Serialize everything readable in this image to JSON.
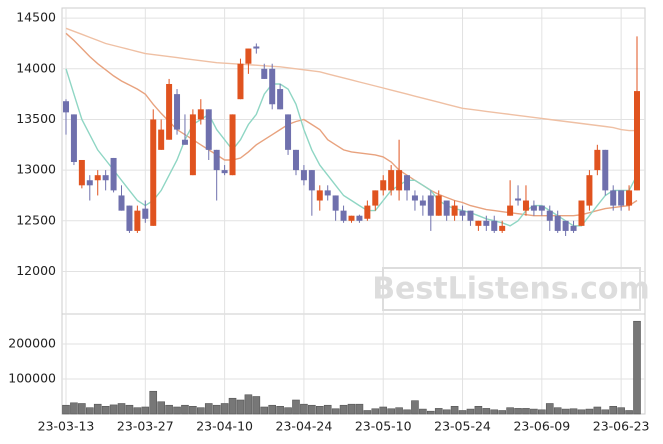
{
  "chart_data": {
    "type": "candlestick",
    "categories": [
      "23-03-13",
      null,
      null,
      null,
      null,
      null,
      null,
      null,
      null,
      null,
      "23-03-27",
      null,
      null,
      null,
      null,
      null,
      null,
      null,
      null,
      null,
      "23-04-10",
      null,
      null,
      null,
      null,
      null,
      null,
      null,
      null,
      null,
      "23-04-24",
      null,
      null,
      null,
      null,
      null,
      null,
      null,
      null,
      null,
      "23-05-10",
      null,
      null,
      null,
      null,
      null,
      null,
      null,
      null,
      null,
      "23-05-24",
      null,
      null,
      null,
      null,
      null,
      null,
      null,
      null,
      null,
      "23-06-09",
      null,
      null,
      null,
      null,
      null,
      null,
      null,
      null,
      null,
      "23-06-23",
      null,
      null
    ],
    "open": [
      13680,
      13550,
      12850,
      12900,
      12900,
      12950,
      13120,
      12750,
      12650,
      12400,
      12620,
      12450,
      13200,
      13300,
      13750,
      13300,
      12950,
      13500,
      13600,
      13200,
      13000,
      12950,
      13700,
      14050,
      14220,
      14000,
      14000,
      13800,
      13550,
      13200,
      13000,
      13000,
      12700,
      12800,
      12750,
      12600,
      12500,
      12550,
      12520,
      12650,
      12800,
      12800,
      12800,
      12950,
      12750,
      12700,
      12750,
      12550,
      12700,
      12550,
      12600,
      12600,
      12450,
      12500,
      12500,
      12400,
      12550,
      12720,
      12600,
      12650,
      12650,
      12600,
      12550,
      12500,
      12450,
      12450,
      12650,
      13000,
      13200,
      12800,
      12800,
      12650,
      12800
    ],
    "high": [
      13700,
      13550,
      13100,
      12950,
      13000,
      13000,
      13120,
      12850,
      12650,
      12650,
      12700,
      13600,
      13500,
      13900,
      13800,
      13550,
      13600,
      13700,
      13600,
      13200,
      13050,
      13550,
      14100,
      14200,
      14250,
      14050,
      14050,
      13850,
      13550,
      13200,
      13050,
      13000,
      12850,
      12850,
      12750,
      12650,
      12550,
      12560,
      12700,
      12800,
      12950,
      13050,
      13300,
      12950,
      12800,
      12750,
      12800,
      12800,
      12700,
      12700,
      12650,
      12600,
      12500,
      12550,
      12550,
      12500,
      12900,
      12850,
      12850,
      12700,
      12650,
      12650,
      12600,
      12500,
      12500,
      12700,
      13000,
      13250,
      13200,
      12850,
      12800,
      12850,
      14320
    ],
    "low": [
      13350,
      13050,
      12820,
      12700,
      12750,
      12800,
      12780,
      12600,
      12380,
      12380,
      12480,
      12450,
      13200,
      13300,
      13350,
      13250,
      12950,
      13450,
      13100,
      12700,
      12950,
      12950,
      13700,
      13950,
      14150,
      13900,
      13600,
      13600,
      13150,
      12950,
      12850,
      12550,
      12600,
      12700,
      12500,
      12480,
      12480,
      12480,
      12500,
      12600,
      12750,
      12750,
      12700,
      12700,
      12600,
      12550,
      12400,
      12550,
      12500,
      12500,
      12500,
      12450,
      12400,
      12400,
      12380,
      12380,
      12550,
      12650,
      12550,
      12550,
      12550,
      12400,
      12380,
      12350,
      12380,
      12450,
      12600,
      12950,
      12750,
      12600,
      12600,
      12600,
      12800
    ],
    "close": [
      13570,
      13080,
      13100,
      12850,
      12950,
      12900,
      12800,
      12600,
      12400,
      12600,
      12520,
      13500,
      13400,
      13850,
      13400,
      13250,
      13550,
      13600,
      13200,
      13000,
      12970,
      13550,
      14050,
      14200,
      14200,
      13900,
      13650,
      13600,
      13200,
      13000,
      12900,
      12800,
      12800,
      12750,
      12600,
      12500,
      12550,
      12500,
      12650,
      12800,
      12900,
      13000,
      13000,
      12800,
      12700,
      12650,
      12550,
      12750,
      12550,
      12650,
      12550,
      12500,
      12500,
      12450,
      12400,
      12450,
      12650,
      12700,
      12700,
      12600,
      12600,
      12500,
      12400,
      12400,
      12400,
      12700,
      12950,
      13200,
      12800,
      12650,
      12650,
      12800,
      13780
    ],
    "up_color": "#e0531f",
    "down_color": "#6f70ad",
    "ylim": [
      11580,
      14600
    ],
    "yticks": [
      12000,
      12500,
      13000,
      13500,
      14000,
      14500
    ],
    "moving_averages": [
      {
        "color": "#efc0a4",
        "values": [
          14400,
          14370,
          14340,
          14310,
          14280,
          14250,
          14230,
          14210,
          14190,
          14170,
          14150,
          14140,
          14130,
          14120,
          14110,
          14100,
          14090,
          14080,
          14070,
          14060,
          14055,
          14050,
          14045,
          14040,
          14035,
          14030,
          14025,
          14020,
          14010,
          14000,
          13990,
          13980,
          13970,
          13950,
          13930,
          13910,
          13890,
          13870,
          13850,
          13830,
          13810,
          13790,
          13770,
          13750,
          13730,
          13710,
          13690,
          13670,
          13650,
          13630,
          13610,
          13600,
          13590,
          13580,
          13570,
          13560,
          13550,
          13540,
          13530,
          13520,
          13510,
          13500,
          13490,
          13480,
          13470,
          13460,
          13450,
          13440,
          13430,
          13420,
          13400,
          13390,
          13390
        ]
      },
      {
        "color": "#e8a27e",
        "values": [
          14350,
          14280,
          14200,
          14120,
          14050,
          13990,
          13930,
          13880,
          13840,
          13800,
          13750,
          13650,
          13560,
          13480,
          13400,
          13350,
          13300,
          13250,
          13200,
          13150,
          13100,
          13100,
          13120,
          13180,
          13250,
          13300,
          13350,
          13400,
          13450,
          13480,
          13500,
          13450,
          13400,
          13300,
          13250,
          13200,
          13180,
          13170,
          13160,
          13150,
          13130,
          13080,
          13000,
          12950,
          12900,
          12850,
          12800,
          12760,
          12730,
          12700,
          12680,
          12650,
          12630,
          12610,
          12600,
          12590,
          12580,
          12570,
          12560,
          12550,
          12550,
          12550,
          12550,
          12550,
          12550,
          12560,
          12580,
          12600,
          12620,
          12630,
          12640,
          12650,
          12700
        ]
      },
      {
        "color": "#8fd6c4",
        "values": [
          14000,
          13750,
          13500,
          13350,
          13200,
          13100,
          13000,
          12900,
          12800,
          12700,
          12650,
          12700,
          12800,
          12950,
          13100,
          13300,
          13450,
          13500,
          13550,
          13400,
          13300,
          13200,
          13300,
          13450,
          13550,
          13750,
          13850,
          13850,
          13800,
          13650,
          13400,
          13200,
          13050,
          12950,
          12850,
          12750,
          12700,
          12650,
          12600,
          12600,
          12700,
          12800,
          12850,
          12900,
          12900,
          12850,
          12800,
          12700,
          12650,
          12620,
          12600,
          12580,
          12550,
          12520,
          12500,
          12480,
          12450,
          12500,
          12600,
          12650,
          12650,
          12600,
          12550,
          12500,
          12450,
          12450,
          12550,
          12650,
          12750,
          12800,
          12800,
          12800,
          12950
        ]
      }
    ],
    "volume": {
      "color": "#777777",
      "ylim": [
        0,
        280000
      ],
      "yticks": [
        100000,
        200000
      ],
      "values": [
        25000,
        32000,
        30000,
        18000,
        28000,
        22000,
        26000,
        30000,
        25000,
        18000,
        20000,
        65000,
        35000,
        25000,
        20000,
        25000,
        22000,
        18000,
        30000,
        25000,
        30000,
        45000,
        40000,
        55000,
        50000,
        20000,
        25000,
        22000,
        18000,
        40000,
        28000,
        25000,
        22000,
        25000,
        15000,
        25000,
        28000,
        28000,
        10000,
        15000,
        20000,
        15000,
        18000,
        12000,
        38000,
        14000,
        8000,
        16000,
        12000,
        22000,
        10000,
        14000,
        22000,
        16000,
        12000,
        10000,
        18000,
        16000,
        16000,
        14000,
        12000,
        30000,
        18000,
        14000,
        15000,
        12000,
        14000,
        20000,
        12000,
        22000,
        18000,
        10000,
        265000
      ]
    },
    "watermark": "BestListens.com"
  }
}
